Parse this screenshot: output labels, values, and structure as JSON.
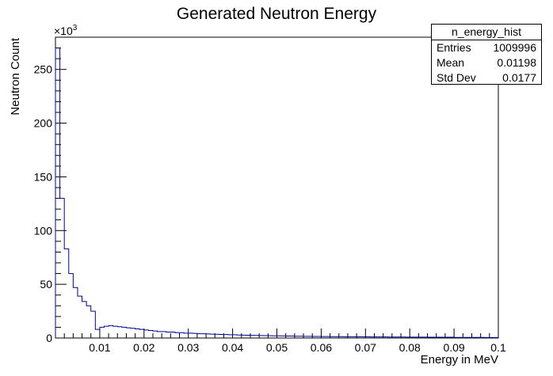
{
  "chart_data": {
    "type": "bar",
    "title": "Generated Neutron Energy",
    "xlabel": "Energy in MeV",
    "ylabel": "Neutron Count",
    "y_multiplier_label": "×10",
    "y_multiplier_exponent": "3",
    "xlim": [
      0,
      0.1
    ],
    "ylim": [
      0,
      280
    ],
    "x_ticks": [
      0.01,
      0.02,
      0.03,
      0.04,
      0.05,
      0.06,
      0.07,
      0.08,
      0.09,
      0.1
    ],
    "x_tick_labels": [
      "0.01",
      "0.02",
      "0.03",
      "0.04",
      "0.05",
      "0.06",
      "0.07",
      "0.08",
      "0.09",
      "0.1"
    ],
    "y_ticks": [
      0,
      50,
      100,
      150,
      200,
      250
    ],
    "y_tick_labels": [
      "0",
      "50",
      "100",
      "150",
      "200",
      "250"
    ],
    "bin_width": 0.001,
    "values": [
      270,
      130,
      83,
      60,
      47,
      39,
      34,
      30,
      25,
      8,
      10,
      11,
      11.5,
      11,
      10.5,
      10,
      9.5,
      9,
      8.5,
      8,
      7.5,
      7,
      6.5,
      6,
      6,
      5.5,
      5.5,
      5,
      5,
      4.5,
      4.5,
      4.3,
      4,
      4,
      3.8,
      3.6,
      3.5,
      3.3,
      3.2,
      3,
      3,
      2.8,
      2.7,
      2.6,
      2.5,
      2.4,
      2.3,
      2.2,
      2.1,
      2,
      2,
      1.9,
      1.8,
      1.8,
      1.7,
      1.7,
      1.6,
      1.6,
      1.5,
      1.5,
      1.4,
      1.4,
      1.3,
      1.3,
      1.3,
      1.2,
      1.2,
      1.2,
      1.1,
      1.1,
      1.1,
      1,
      1,
      1,
      1,
      0.9,
      0.9,
      0.9,
      0.9,
      0.8,
      0.8,
      0.8,
      0.8,
      0.8,
      0.7,
      0.7,
      0.7,
      0.7,
      0.7,
      0.7,
      0.6,
      0.6,
      0.6,
      0.6,
      0.6,
      0.6,
      0.6,
      0.5,
      0.5,
      0.5
    ],
    "line_color": "#000099",
    "grid": false,
    "legend": "top-right"
  },
  "stats": {
    "title": "n_energy_hist",
    "rows": [
      {
        "label": "Entries",
        "value": "1009996"
      },
      {
        "label": "Mean",
        "value": "0.01198"
      },
      {
        "label": "Std Dev",
        "value": "0.0177"
      }
    ]
  }
}
